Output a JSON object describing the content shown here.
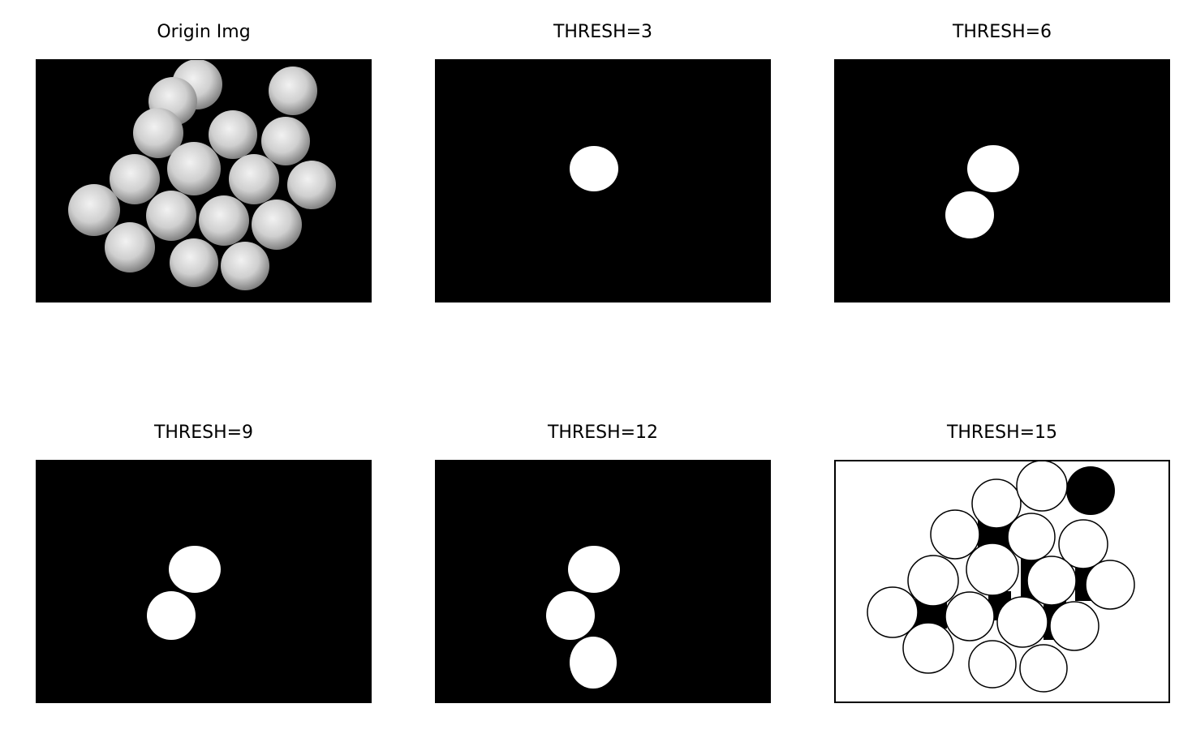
{
  "figure": {
    "panels": [
      {
        "id": "origin",
        "title": "Origin Img"
      },
      {
        "id": "t3",
        "title": "THRESH=3"
      },
      {
        "id": "t6",
        "title": "THRESH=6"
      },
      {
        "id": "t9",
        "title": "THRESH=9"
      },
      {
        "id": "t12",
        "title": "THRESH=12"
      },
      {
        "id": "t15",
        "title": "THRESH=15"
      }
    ]
  },
  "colors": {
    "background": "#000000",
    "foreground": "#ffffff",
    "ball_gray": "#c8c8c8"
  }
}
